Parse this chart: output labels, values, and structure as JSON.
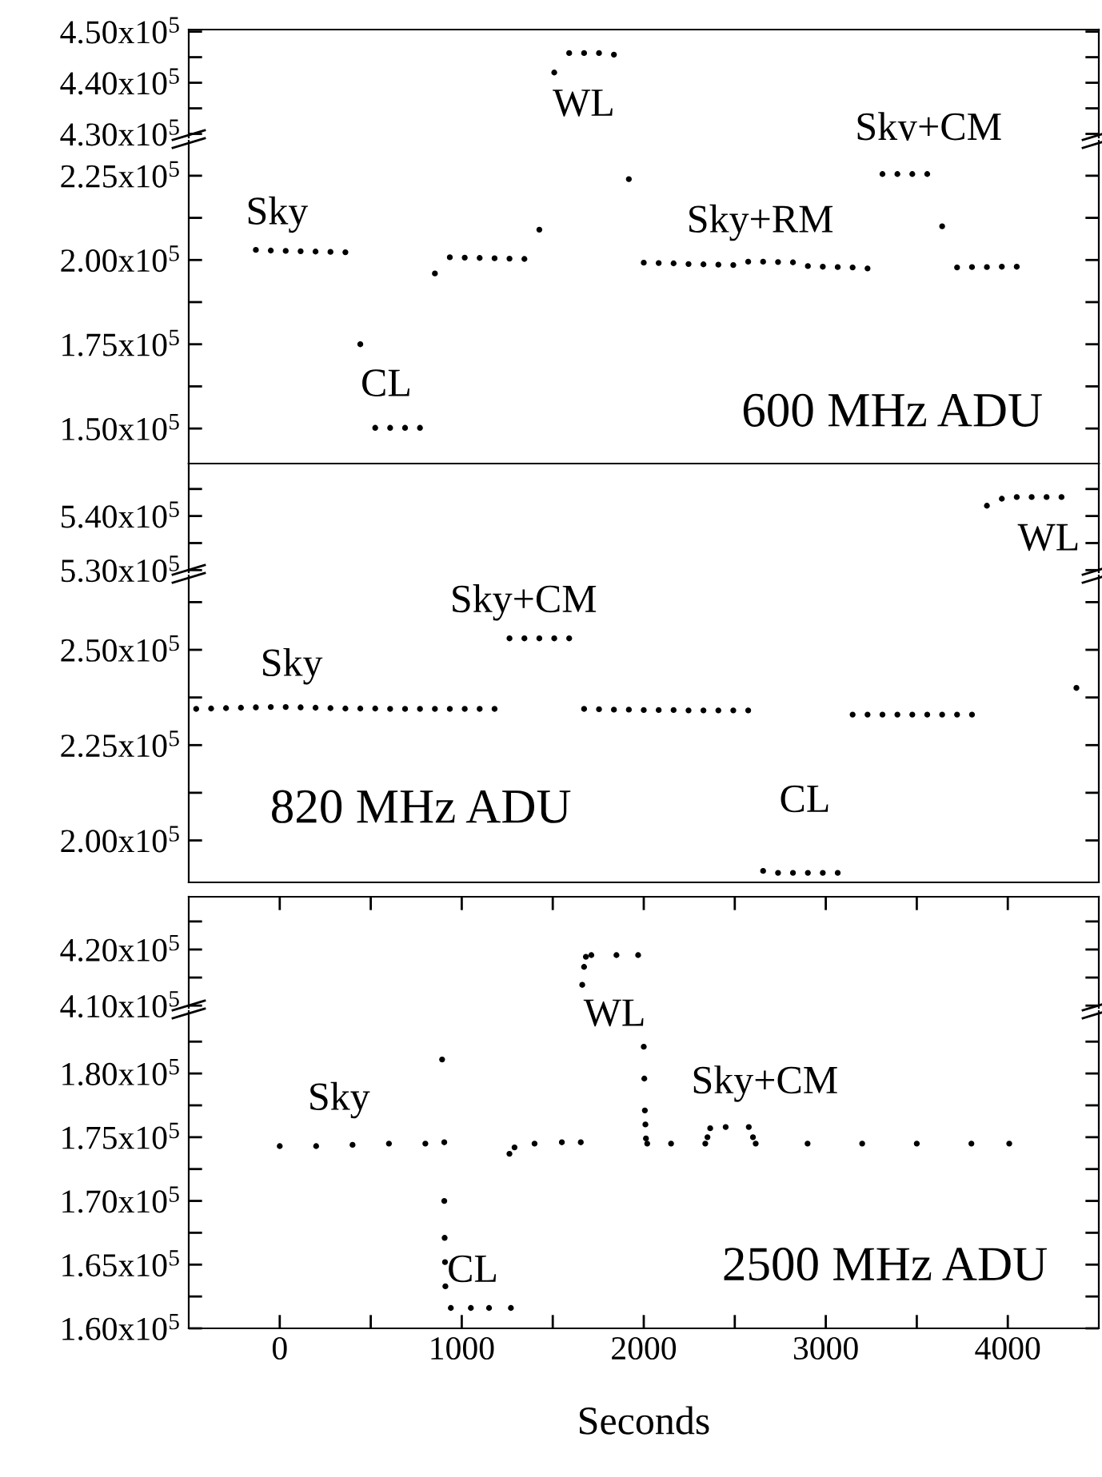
{
  "chart_data": [
    {
      "type": "scatter",
      "categories": [
        null,
        null,
        null,
        null,
        null,
        null,
        null,
        null,
        null,
        null,
        null,
        null,
        null,
        null,
        null,
        null,
        null,
        null,
        null,
        null,
        null,
        null,
        null,
        null,
        null,
        null,
        null,
        null,
        null,
        null,
        null,
        null,
        null,
        null,
        null,
        null,
        null,
        null,
        null,
        null,
        null,
        null,
        null,
        null,
        null,
        null,
        null,
        null,
        null,
        null,
        null,
        null,
        null,
        null,
        null,
        null,
        null,
        null,
        null,
        null,
        null
      ],
      "ylim": [
        429300,
        450400
      ],
      "yticks": [
        {
          "value": 430000,
          "label": "4.30x10$^{5}$"
        },
        {
          "value": 435000,
          "label": null
        },
        {
          "value": 440000,
          "label": "4.40x10$^{5}$"
        },
        {
          "value": 445000,
          "label": null
        },
        {
          "value": 450000,
          "label": "4.50x10$^{5}$"
        }
      ],
      "tick_labels": "y",
      "marker": "circle",
      "series": [
        {
          "color": "#000000",
          "values": [
            null,
            null,
            null,
            null,
            null,
            null,
            null,
            null,
            null,
            null,
            null,
            null,
            null,
            null,
            null,
            null,
            null,
            null,
            null,
            null,
            null,
            null,
            null,
            null,
            442000,
            445800,
            445800,
            445800,
            445500,
            null,
            null,
            null,
            null,
            null,
            null,
            null,
            null,
            null,
            null,
            null,
            null,
            null,
            null,
            null,
            null,
            null,
            null,
            null,
            null,
            null,
            null,
            null,
            null,
            null,
            null,
            null,
            null,
            null,
            null,
            null,
            null
          ]
        }
      ],
      "annotations": [
        "WL",
        "Sky+CM"
      ]
    },
    {
      "type": "scatter",
      "categories": [
        null,
        null,
        null,
        null,
        null,
        null,
        null,
        null,
        null,
        null,
        null,
        null,
        null,
        null,
        null,
        null,
        null,
        null,
        null,
        null,
        null,
        null,
        null,
        null,
        null,
        null,
        null,
        null,
        null,
        null,
        null,
        null,
        null,
        null,
        null,
        null,
        null,
        null,
        null,
        null,
        null,
        null,
        null,
        null,
        null,
        null,
        null,
        null,
        null,
        null,
        null,
        null,
        null,
        null,
        null,
        null,
        null,
        null,
        null,
        null,
        null
      ],
      "ylim": [
        139600,
        235400
      ],
      "yticks": [
        {
          "value": 150000,
          "label": "1.50x10$^{5}$"
        },
        {
          "value": 162500,
          "label": null
        },
        {
          "value": 175000,
          "label": "1.75x10$^{5}$"
        },
        {
          "value": 187500,
          "label": null
        },
        {
          "value": 200000,
          "label": "2.00x10$^{5}$"
        },
        {
          "value": 212500,
          "label": null
        },
        {
          "value": 225000,
          "label": "2.25x10$^{5}$"
        }
      ],
      "tick_labels": "y",
      "marker": "circle",
      "series": [
        {
          "color": "#000000",
          "values": [
            null,
            null,
            null,
            null,
            203000,
            202800,
            202700,
            202600,
            202500,
            202400,
            202300,
            175000,
            150200,
            150200,
            150200,
            150200,
            196000,
            200800,
            200700,
            200600,
            200500,
            200400,
            200300,
            209000,
            null,
            null,
            null,
            null,
            null,
            224000,
            199200,
            199100,
            199000,
            198800,
            198700,
            198600,
            198500,
            199500,
            199500,
            199400,
            199300,
            198200,
            198000,
            197900,
            197800,
            197500,
            225500,
            225500,
            225500,
            225500,
            210000,
            197800,
            197900,
            197900,
            198000,
            198000,
            null,
            null,
            null,
            null,
            null
          ]
        }
      ],
      "annotations": [
        "Sky",
        "CL",
        "Sky+RM",
        "600 MHz ADU"
      ]
    },
    {
      "type": "scatter",
      "categories": [
        null,
        null,
        null,
        null,
        null,
        null,
        null,
        null,
        null,
        null,
        null,
        null,
        null,
        null,
        null,
        null,
        null,
        null,
        null,
        null,
        null,
        null,
        null,
        null,
        null,
        null,
        null,
        null,
        null,
        null,
        null,
        null,
        null,
        null,
        null,
        null,
        null,
        null,
        null,
        null,
        null,
        null,
        null,
        null,
        null,
        null,
        null,
        null,
        null,
        null,
        null,
        null,
        null,
        null,
        null,
        null,
        null,
        null,
        null,
        null,
        null
      ],
      "ylim": [
        529600,
        549700
      ],
      "yticks": [
        {
          "value": 530000,
          "label": "5.30x10$^{5}$"
        },
        {
          "value": 535000,
          "label": null
        },
        {
          "value": 540000,
          "label": "5.40x10$^{5}$"
        },
        {
          "value": 545000,
          "label": null
        }
      ],
      "tick_labels": "y",
      "marker": "circle",
      "series": [
        {
          "color": "#000000",
          "values": [
            null,
            null,
            null,
            null,
            null,
            null,
            null,
            null,
            null,
            null,
            null,
            null,
            null,
            null,
            null,
            null,
            null,
            null,
            null,
            null,
            null,
            null,
            null,
            null,
            null,
            null,
            null,
            null,
            null,
            null,
            null,
            null,
            null,
            null,
            null,
            null,
            null,
            null,
            null,
            null,
            null,
            null,
            null,
            null,
            null,
            null,
            null,
            null,
            null,
            null,
            null,
            null,
            null,
            541900,
            543200,
            543500,
            543500,
            543500,
            543500,
            null,
            null
          ]
        }
      ],
      "annotations": [
        "WL"
      ]
    },
    {
      "type": "scatter",
      "categories": [
        null,
        null,
        null,
        null,
        null,
        null,
        null,
        null,
        null,
        null,
        null,
        null,
        null,
        null,
        null,
        null,
        null,
        null,
        null,
        null,
        null,
        null,
        null,
        null,
        null,
        null,
        null,
        null,
        null,
        null,
        null,
        null,
        null,
        null,
        null,
        null,
        null,
        null,
        null,
        null,
        null,
        null,
        null,
        null,
        null,
        null,
        null,
        null,
        null,
        null,
        null,
        null,
        null,
        null,
        null,
        null,
        null,
        null,
        null,
        null,
        null
      ],
      "ylim": [
        189000,
        269500
      ],
      "yticks": [
        {
          "value": 200000,
          "label": "2.00x10$^{5}$"
        },
        {
          "value": 212500,
          "label": null
        },
        {
          "value": 225000,
          "label": "2.25x10$^{5}$"
        },
        {
          "value": 237500,
          "label": null
        },
        {
          "value": 250000,
          "label": "2.50x10$^{5}$"
        },
        {
          "value": 262500,
          "label": null
        }
      ],
      "tick_labels": "y",
      "marker": "circle",
      "series": [
        {
          "color": "#000000",
          "values": [
            234500,
            234600,
            234700,
            234800,
            234900,
            235000,
            235000,
            234900,
            234800,
            234700,
            234600,
            234600,
            234600,
            234500,
            234500,
            234500,
            234500,
            234500,
            234500,
            234500,
            234500,
            253000,
            253000,
            253000,
            253000,
            253000,
            234500,
            234400,
            234300,
            234300,
            234200,
            234200,
            234200,
            234100,
            234100,
            234100,
            234100,
            234100,
            192000,
            191500,
            191500,
            191500,
            191500,
            191500,
            233000,
            233000,
            233000,
            233000,
            233000,
            233000,
            233000,
            233000,
            233000,
            null,
            null,
            null,
            null,
            null,
            null,
            240000,
            null
          ]
        }
      ],
      "annotations": [
        "Sky",
        "Sky+CM",
        "820 MHz ADU",
        "CL"
      ]
    },
    {
      "type": "scatter",
      "xlim": [
        -500,
        4500
      ],
      "xticks": [
        {
          "value": 0,
          "label": null
        },
        {
          "value": 500,
          "label": null
        },
        {
          "value": 1000,
          "label": null
        },
        {
          "value": 1500,
          "label": null
        },
        {
          "value": 2000,
          "label": null
        },
        {
          "value": 2500,
          "label": null
        },
        {
          "value": 3000,
          "label": null
        },
        {
          "value": 3500,
          "label": null
        },
        {
          "value": 4000,
          "label": null
        }
      ],
      "ylim": [
        409600,
        429400
      ],
      "yticks": [
        {
          "value": 410000,
          "label": "4.10x10$^{5}$"
        },
        {
          "value": 415000,
          "label": null
        },
        {
          "value": 420000,
          "label": "4.20x10$^{5}$"
        },
        {
          "value": 425000,
          "label": null
        }
      ],
      "tick_labels": "y",
      "marker": "circle",
      "series": [
        {
          "color": "#000000",
          "x": [
            1662,
            1672,
            1682,
            1712,
            1850,
            1969
          ],
          "values": [
            413700,
            416900,
            418700,
            419000,
            419000,
            419000
          ]
        }
      ]
    },
    {
      "type": "scatter",
      "xlim": [
        -500,
        4500
      ],
      "xticks": [
        0,
        {
          "value": 500,
          "label": null
        },
        1000,
        {
          "value": 1500,
          "label": null
        },
        2000,
        {
          "value": 2500,
          "label": null
        },
        3000,
        {
          "value": 3500,
          "label": null
        },
        4000
      ],
      "ylim": [
        160000,
        184900
      ],
      "yticks": [
        {
          "value": 160000,
          "label": "1.60x10$^{5}$"
        },
        {
          "value": 162500,
          "label": null
        },
        {
          "value": 165000,
          "label": "1.65x10$^{5}$"
        },
        {
          "value": 167500,
          "label": null
        },
        {
          "value": 170000,
          "label": "1.70x10$^{5}$"
        },
        {
          "value": 172500,
          "label": null
        },
        {
          "value": 175000,
          "label": "1.75x10$^{5}$"
        },
        {
          "value": 177500,
          "label": null
        },
        {
          "value": 180000,
          "label": "1.80x10$^{5}$"
        },
        {
          "value": 182500,
          "label": null
        }
      ],
      "marker": "circle",
      "xlabel": "Seconds",
      "series": [
        {
          "color": "#000000",
          "x": [
            0,
            200,
            400,
            600,
            800,
            904,
            892,
            904,
            906,
            908,
            910,
            940,
            1050,
            1150,
            1270,
            1262,
            1290,
            1400,
            1550,
            1654,
            2000,
            2003,
            2006,
            2009,
            2012,
            2019,
            2150,
            2338,
            2350,
            2365,
            2450,
            2577,
            2600,
            2615,
            2900,
            3200,
            3500,
            3800,
            4008
          ],
          "values": [
            174300,
            174300,
            174400,
            174500,
            174500,
            174600,
            181100,
            170000,
            167100,
            165200,
            163300,
            161600,
            161600,
            161600,
            161600,
            173700,
            174200,
            174500,
            174600,
            174600,
            182100,
            179600,
            177100,
            176000,
            174900,
            174500,
            174500,
            174500,
            175000,
            175700,
            175800,
            175800,
            175000,
            174500,
            174500,
            174500,
            174500,
            174500,
            174500
          ]
        }
      ],
      "annotations": [
        "Sky",
        "CL",
        "WL",
        "Sky+CM",
        "2500 MHz ADU"
      ]
    }
  ]
}
